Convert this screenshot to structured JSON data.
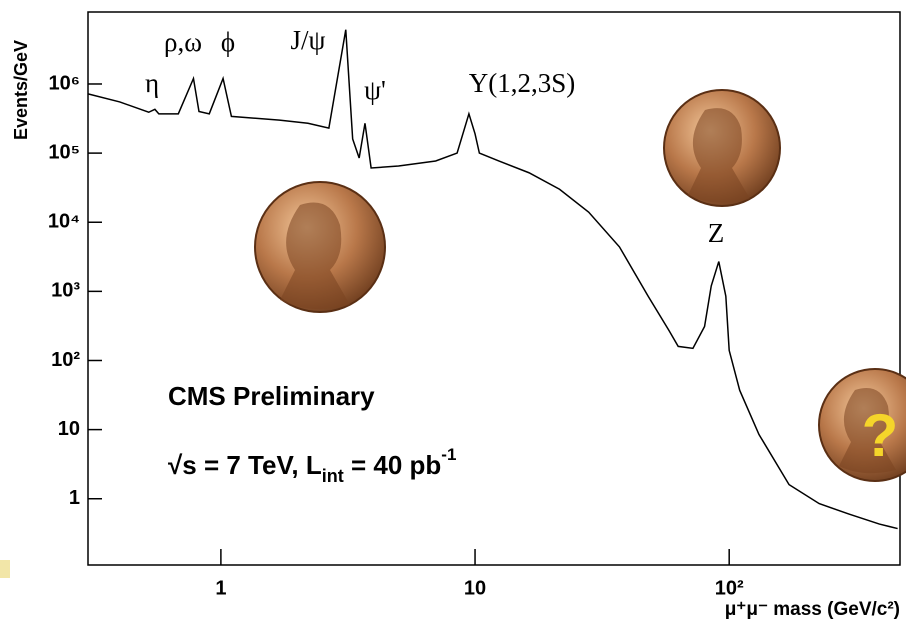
{
  "chart_data": {
    "type": "line",
    "y_label": "Events/GeV",
    "x_label": "μ⁺μ⁻ mass (GeV/c²)",
    "xscale": "log",
    "yscale": "log",
    "xlim": [
      0.3,
      470
    ],
    "ylim": [
      0.11,
      11000000
    ],
    "xticks": [
      1,
      10,
      {
        "value": 100,
        "label": "10²"
      }
    ],
    "yticks": [
      1,
      10,
      {
        "value": 100,
        "label": "10²"
      },
      {
        "value": 1000,
        "label": "10³"
      },
      {
        "value": 10000,
        "label": "10⁴"
      },
      {
        "value": 100000,
        "label": "10⁵"
      },
      {
        "value": 1000000,
        "label": "10⁶"
      }
    ],
    "color": "#000000",
    "x": [
      0.3,
      0.4,
      0.52,
      0.55,
      0.57,
      0.68,
      0.78,
      0.82,
      0.9,
      1.02,
      1.1,
      1.7,
      2.2,
      2.66,
      3.1,
      3.3,
      3.5,
      3.69,
      3.9,
      5,
      7,
      8.5,
      9.46,
      10,
      10.4,
      12.4,
      16.3,
      21.5,
      28,
      37,
      48,
      58,
      63,
      72,
      80,
      85,
      91,
      97,
      100,
      110,
      131,
      172,
      226,
      296,
      390,
      460
    ],
    "values": [
      720000,
      550000,
      390000,
      430000,
      370000,
      370000,
      1200000,
      400000,
      370000,
      1200000,
      340000,
      300000,
      270000,
      230000,
      6100000,
      160000,
      85000,
      270000,
      61000,
      65000,
      77000,
      100000,
      370000,
      190000,
      100000,
      77000,
      52000,
      30000,
      14000,
      4400,
      850,
      270,
      160,
      150,
      310,
      1200,
      2700,
      850,
      140,
      37,
      8.5,
      1.6,
      0.85,
      0.6,
      0.43,
      0.37
    ],
    "annotations": [
      "η",
      "ρ,ω",
      "ϕ",
      "J/ψ",
      "ψ'",
      "Υ(1,2,3S)",
      "Z",
      "CMS Preliminary",
      "?"
    ],
    "luminosity_text": [
      "√s = 7 TeV,  L",
      "int",
      " = 40 pb",
      "-1"
    ]
  }
}
